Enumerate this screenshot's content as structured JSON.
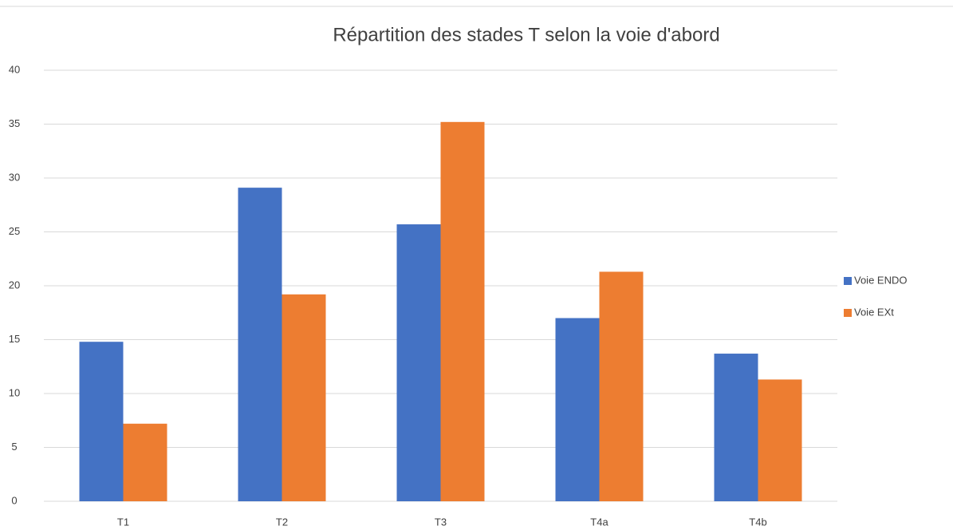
{
  "chart_data": {
    "type": "bar",
    "title": "Répartition des stades T selon la voie d'abord",
    "categories": [
      "T1",
      "T2",
      "T3",
      "T4a",
      "T4b"
    ],
    "series": [
      {
        "name": "Voie ENDO",
        "color": "#4472c4",
        "values": [
          14.8,
          29.1,
          25.7,
          17.0,
          13.7
        ]
      },
      {
        "name": "Voie EXt",
        "color": "#ed7d31",
        "values": [
          7.2,
          19.2,
          35.2,
          21.3,
          11.3
        ]
      }
    ],
    "ylim": [
      0,
      40
    ],
    "yticks": [
      0,
      5,
      10,
      15,
      20,
      25,
      30,
      35,
      40
    ],
    "grid": true,
    "legend": "right"
  }
}
